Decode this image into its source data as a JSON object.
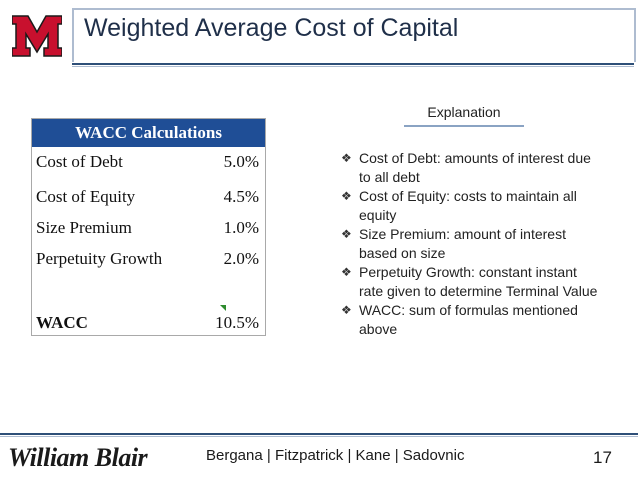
{
  "header": {
    "title": "Weighted Average Cost of Capital"
  },
  "colors": {
    "logo_red": "#c8102e",
    "table_header_blue": "#1f4e96",
    "title_text": "#1f2f49"
  },
  "table": {
    "heading": "WACC Calculations",
    "rows": [
      {
        "label": "Cost of Debt",
        "value": "5.0%"
      },
      {
        "label": "Cost of Equity",
        "value": "4.5%"
      },
      {
        "label": "Size Premium",
        "value": "1.0%"
      },
      {
        "label": "Perpetuity Growth",
        "value": "2.0%"
      }
    ],
    "total": {
      "label": "WACC",
      "value": "10.5%"
    }
  },
  "explanation": {
    "heading": "Explanation",
    "items": [
      "Cost of Debt: amounts of interest due to all debt",
      "Cost of Equity: costs to maintain all equity",
      "Size Premium: amount of interest based on size",
      "Perpetuity Growth: constant instant rate given to determine Terminal Value",
      "WACC: sum of formulas mentioned above"
    ]
  },
  "footer": {
    "brand": "William Blair",
    "authors": "Bergana | Fitzpatrick | Kane | Sadovnic",
    "page": "17"
  }
}
